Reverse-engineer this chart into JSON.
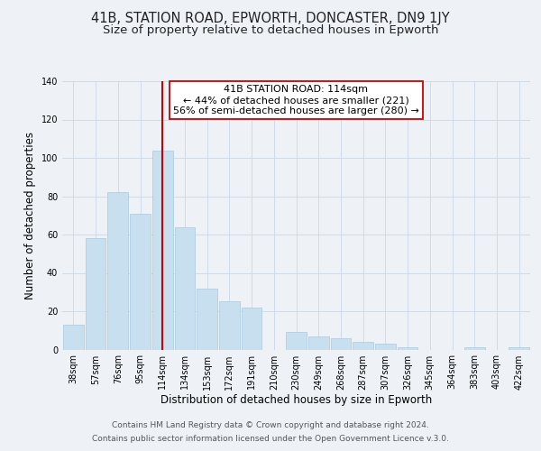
{
  "title": "41B, STATION ROAD, EPWORTH, DONCASTER, DN9 1JY",
  "subtitle": "Size of property relative to detached houses in Epworth",
  "xlabel": "Distribution of detached houses by size in Epworth",
  "ylabel": "Number of detached properties",
  "bar_labels": [
    "38sqm",
    "57sqm",
    "76sqm",
    "95sqm",
    "114sqm",
    "134sqm",
    "153sqm",
    "172sqm",
    "191sqm",
    "210sqm",
    "230sqm",
    "249sqm",
    "268sqm",
    "287sqm",
    "307sqm",
    "326sqm",
    "345sqm",
    "364sqm",
    "383sqm",
    "403sqm",
    "422sqm"
  ],
  "bar_values": [
    13,
    58,
    82,
    71,
    104,
    64,
    32,
    25,
    22,
    0,
    9,
    7,
    6,
    4,
    3,
    1,
    0,
    0,
    1,
    0,
    1
  ],
  "bar_color": "#c8dff0",
  "bar_edge_color": "#a8c8e0",
  "highlight_bar_index": 4,
  "highlight_line_color": "#cc0000",
  "annotation_title": "41B STATION ROAD: 114sqm",
  "annotation_line1": "← 44% of detached houses are smaller (221)",
  "annotation_line2": "56% of semi-detached houses are larger (280) →",
  "annotation_box_color": "#ffffff",
  "annotation_box_edge": "#cc0000",
  "ylim": [
    0,
    140
  ],
  "yticks": [
    0,
    20,
    40,
    60,
    80,
    100,
    120,
    140
  ],
  "footer1": "Contains HM Land Registry data © Crown copyright and database right 2024.",
  "footer2": "Contains public sector information licensed under the Open Government Licence v.3.0.",
  "bg_color": "#eef2f7",
  "plot_bg_color": "#eef2f7",
  "grid_color": "#c8d8e8",
  "title_fontsize": 10.5,
  "subtitle_fontsize": 9.5,
  "axis_label_fontsize": 8.5,
  "tick_fontsize": 7,
  "annotation_fontsize": 8,
  "footer_fontsize": 6.5
}
